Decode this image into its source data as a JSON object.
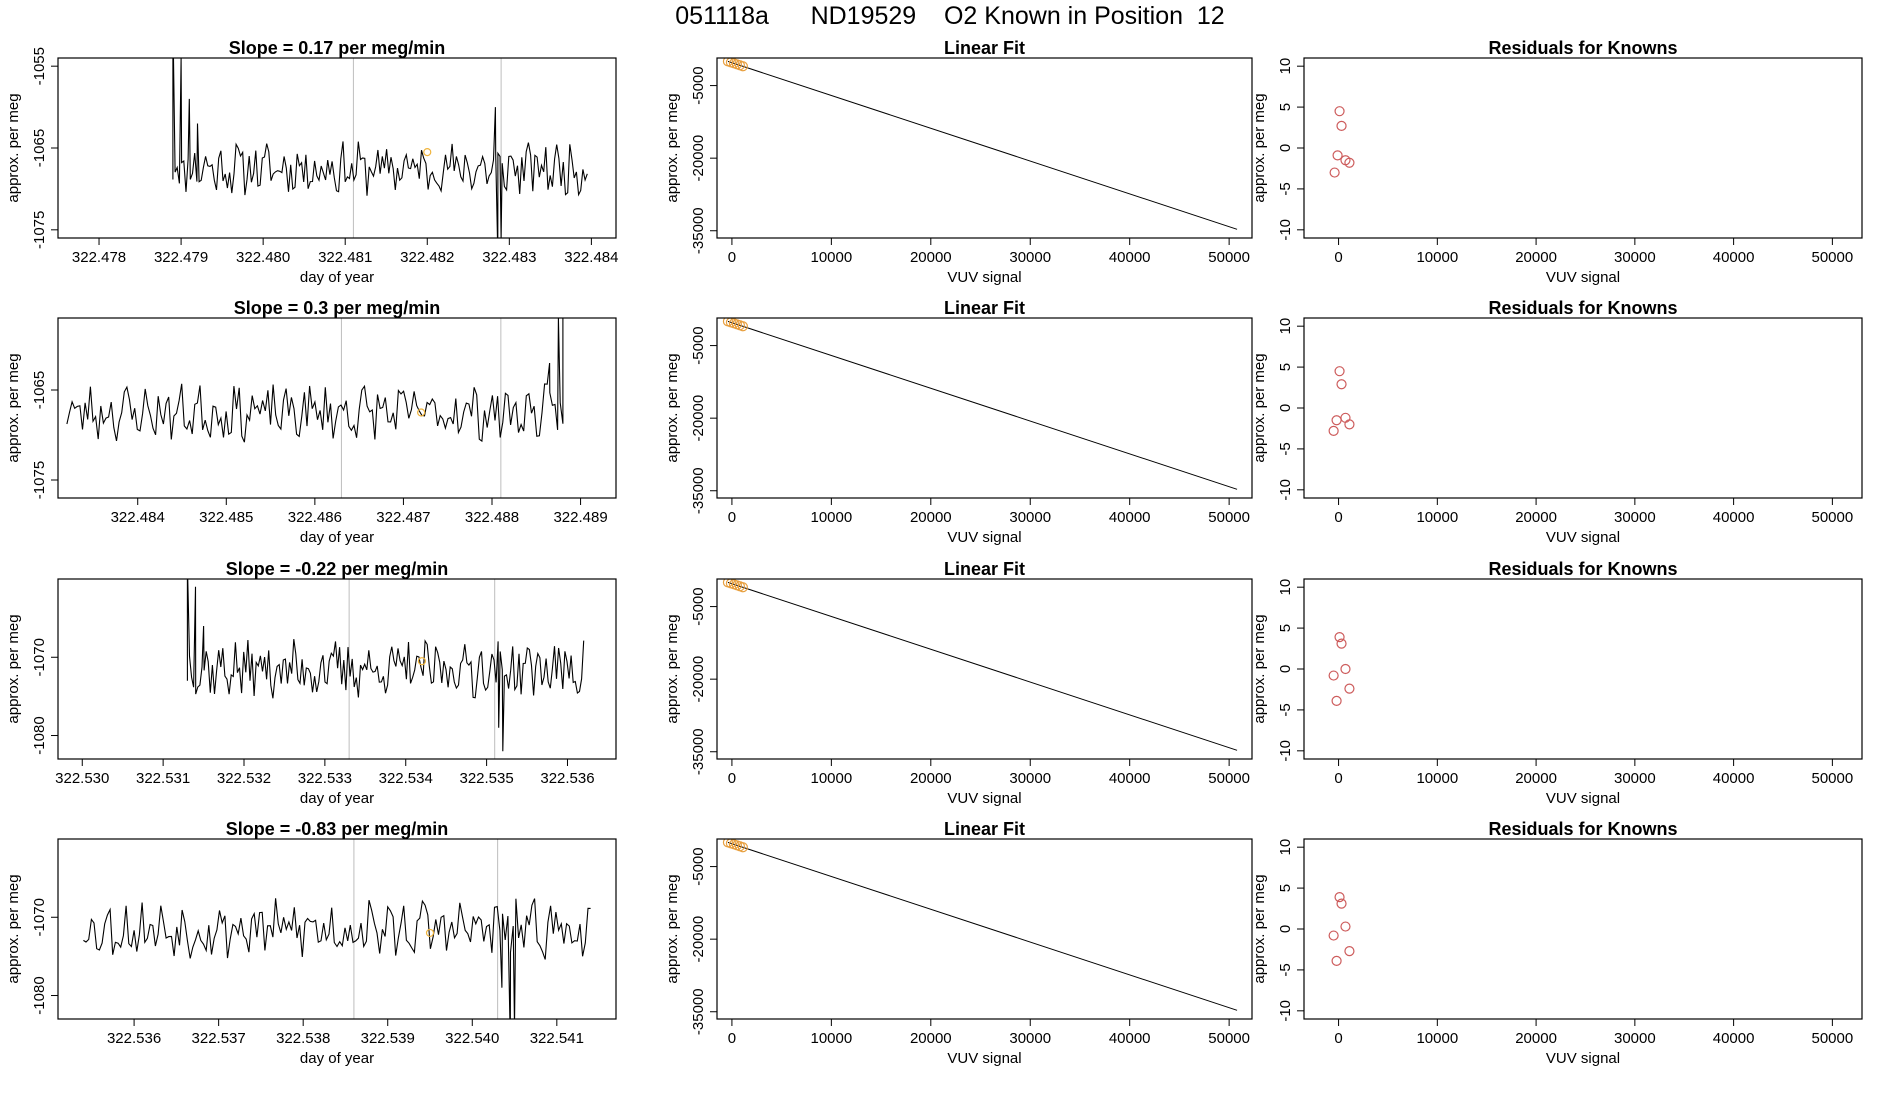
{
  "page_title": "051118a      ND19529    O2 Known in Position  12",
  "colors": {
    "trace": "#000000",
    "marker": "#f0b43c",
    "fit_point": "#e8a040",
    "residual": "#cd5c5c",
    "vline": "#bebebe"
  },
  "chart_data": [
    {
      "type": "line",
      "title": "Slope =  0.17  per meg/min",
      "xlabel": "day of year",
      "ylabel": "approx. per meg",
      "xlim": [
        322.4775,
        322.4843
      ],
      "ylim": [
        -1076,
        -1054
      ],
      "xticks": [
        "322.478",
        "322.479",
        "322.480",
        "322.481",
        "322.482",
        "322.483",
        "322.484"
      ],
      "yticks": [
        "-1055",
        "-1065",
        "-1075"
      ],
      "vlines": [
        322.4811,
        322.4829
      ],
      "marker": {
        "x": 322.482,
        "y": -1065.5
      },
      "x_start": 322.4789,
      "x_end": 322.48395,
      "seed": 11,
      "base": -1067.5,
      "amp": 2.6,
      "spikes": [
        {
          "x": 322.4789,
          "y": -1049
        },
        {
          "x": 322.479,
          "y": -1054
        },
        {
          "x": 322.4791,
          "y": -1059
        },
        {
          "x": 322.4792,
          "y": -1062
        },
        {
          "x": 322.48283,
          "y": -1060
        },
        {
          "x": 322.48286,
          "y": -1078
        },
        {
          "x": 322.4829,
          "y": -1076
        }
      ]
    },
    {
      "type": "line",
      "title": "Slope =  0.3  per meg/min",
      "xlabel": "day of year",
      "ylabel": "approx. per meg",
      "xlim": [
        322.4831,
        322.4894
      ],
      "ylim": [
        -1077,
        -1057
      ],
      "xticks": [
        "322.484",
        "322.485",
        "322.486",
        "322.487",
        "322.488",
        "322.489"
      ],
      "yticks": [
        "-1065",
        "-1075"
      ],
      "vlines": [
        322.4863,
        322.4881
      ],
      "marker": {
        "x": 322.4872,
        "y": -1067.5
      },
      "x_start": 322.4832,
      "x_end": 322.4888,
      "seed": 23,
      "base": -1067.5,
      "amp": 2.5,
      "spikes": [
        {
          "x": 322.48865,
          "y": -1062
        },
        {
          "x": 322.48875,
          "y": -1057
        },
        {
          "x": 322.4888,
          "y": -1053
        }
      ]
    },
    {
      "type": "line",
      "title": "Slope =  -0.22  per meg/min",
      "xlabel": "day of year",
      "ylabel": "approx. per meg",
      "xlim": [
        322.5297,
        322.5366
      ],
      "ylim": [
        -1083,
        -1060
      ],
      "xticks": [
        "322.530",
        "322.531",
        "322.532",
        "322.533",
        "322.534",
        "322.535",
        "322.536"
      ],
      "yticks": [
        "-1070",
        "-1080"
      ],
      "vlines": [
        322.5333,
        322.5351
      ],
      "marker": {
        "x": 322.5342,
        "y": -1070.5
      },
      "x_start": 322.5313,
      "x_end": 322.5362,
      "seed": 37,
      "base": -1071.5,
      "amp": 3,
      "spikes": [
        {
          "x": 322.5313,
          "y": -1058
        },
        {
          "x": 322.5314,
          "y": -1061
        },
        {
          "x": 322.5315,
          "y": -1066
        },
        {
          "x": 322.53515,
          "y": -1079
        },
        {
          "x": 322.5352,
          "y": -1082
        }
      ]
    },
    {
      "type": "line",
      "title": "Slope =  -0.83  per meg/min",
      "xlabel": "day of year",
      "ylabel": "approx. per meg",
      "xlim": [
        322.5351,
        322.5417
      ],
      "ylim": [
        -1083,
        -1060
      ],
      "xticks": [
        "322.536",
        "322.537",
        "322.538",
        "322.539",
        "322.540",
        "322.541"
      ],
      "yticks": [
        "-1070",
        "-1080"
      ],
      "vlines": [
        322.5386,
        322.5403
      ],
      "marker": {
        "x": 322.5395,
        "y": -1072
      },
      "x_start": 322.5354,
      "x_end": 322.5414,
      "seed": 53,
      "base": -1071.5,
      "amp": 3,
      "spikes": [
        {
          "x": 322.54035,
          "y": -1079
        },
        {
          "x": 322.54045,
          "y": -1086
        },
        {
          "x": 322.5405,
          "y": -1084
        }
      ]
    },
    {
      "type": "scatter",
      "title": "Linear Fit",
      "xlabel": "VUV signal",
      "ylabel": "approx. per meg",
      "xlim": [
        -1500,
        52300
      ],
      "ylim": [
        -36500,
        700
      ],
      "xticks": [
        0,
        10000,
        20000,
        30000,
        40000,
        50000
      ],
      "yticks": [
        -5000,
        -20000,
        -35000
      ],
      "line": {
        "x": [
          -400,
          50800
        ],
        "y": [
          0,
          -34700
        ]
      },
      "points": {
        "x": [
          -400,
          -100,
          200,
          500,
          800,
          1100
        ],
        "y": [
          0,
          -200,
          -400,
          -600,
          -800,
          -1000
        ]
      }
    },
    {
      "type": "scatter",
      "title": "Linear Fit",
      "xlabel": "VUV signal",
      "ylabel": "approx. per meg",
      "xlim": [
        -1500,
        52300
      ],
      "ylim": [
        -36500,
        700
      ],
      "xticks": [
        0,
        10000,
        20000,
        30000,
        40000,
        50000
      ],
      "yticks": [
        -5000,
        -20000,
        -35000
      ],
      "line": {
        "x": [
          -400,
          50800
        ],
        "y": [
          0,
          -34700
        ]
      },
      "points": {
        "x": [
          -400,
          -100,
          200,
          500,
          800,
          1100
        ],
        "y": [
          0,
          -200,
          -400,
          -600,
          -800,
          -1000
        ]
      }
    },
    {
      "type": "scatter",
      "title": "Linear Fit",
      "xlabel": "VUV signal",
      "ylabel": "approx. per meg",
      "xlim": [
        -1500,
        52300
      ],
      "ylim": [
        -36500,
        700
      ],
      "xticks": [
        0,
        10000,
        20000,
        30000,
        40000,
        50000
      ],
      "yticks": [
        -5000,
        -20000,
        -35000
      ],
      "line": {
        "x": [
          -400,
          50800
        ],
        "y": [
          0,
          -34700
        ]
      },
      "points": {
        "x": [
          -400,
          -100,
          200,
          500,
          800,
          1100
        ],
        "y": [
          0,
          -200,
          -400,
          -600,
          -800,
          -1000
        ]
      }
    },
    {
      "type": "scatter",
      "title": "Linear Fit",
      "xlabel": "VUV signal",
      "ylabel": "approx. per meg",
      "xlim": [
        -1500,
        52300
      ],
      "ylim": [
        -36500,
        700
      ],
      "xticks": [
        0,
        10000,
        20000,
        30000,
        40000,
        50000
      ],
      "yticks": [
        -5000,
        -20000,
        -35000
      ],
      "line": {
        "x": [
          -400,
          50800
        ],
        "y": [
          0,
          -34700
        ]
      },
      "points": {
        "x": [
          -400,
          -100,
          200,
          500,
          800,
          1100
        ],
        "y": [
          0,
          -200,
          -400,
          -600,
          -800,
          -1000
        ]
      }
    },
    {
      "type": "scatter",
      "title": "Residuals for Knowns",
      "xlabel": "VUV signal",
      "ylabel": "approx. per meg",
      "xlim": [
        -3500,
        53000
      ],
      "ylim": [
        -11,
        11
      ],
      "xticks": [
        0,
        10000,
        20000,
        30000,
        40000,
        50000
      ],
      "yticks": [
        10,
        5,
        0,
        -5,
        -10
      ],
      "points": {
        "x": [
          -400,
          -100,
          100,
          300,
          700,
          1100
        ],
        "y": [
          -3,
          -0.9,
          4.5,
          2.7,
          -1.5,
          -1.8
        ]
      }
    },
    {
      "type": "scatter",
      "title": "Residuals for Knowns",
      "xlabel": "VUV signal",
      "ylabel": "approx. per meg",
      "xlim": [
        -3500,
        53000
      ],
      "ylim": [
        -11,
        11
      ],
      "xticks": [
        0,
        10000,
        20000,
        30000,
        40000,
        50000
      ],
      "yticks": [
        10,
        5,
        0,
        -5,
        -10
      ],
      "points": {
        "x": [
          -500,
          -200,
          100,
          300,
          700,
          1100
        ],
        "y": [
          -2.8,
          -1.5,
          4.5,
          2.9,
          -1.2,
          -2.0
        ]
      }
    },
    {
      "type": "scatter",
      "title": "Residuals for Knowns",
      "xlabel": "VUV signal",
      "ylabel": "approx. per meg",
      "xlim": [
        -3500,
        53000
      ],
      "ylim": [
        -11,
        11
      ],
      "xticks": [
        0,
        10000,
        20000,
        30000,
        40000,
        50000
      ],
      "yticks": [
        10,
        5,
        0,
        -5,
        -10
      ],
      "points": {
        "x": [
          -500,
          -200,
          100,
          300,
          700,
          1100
        ],
        "y": [
          -0.8,
          -3.9,
          3.9,
          3.1,
          0,
          -2.4
        ]
      }
    },
    {
      "type": "scatter",
      "title": "Residuals for Knowns",
      "xlabel": "VUV signal",
      "ylabel": "approx. per meg",
      "xlim": [
        -3500,
        53000
      ],
      "ylim": [
        -11,
        11
      ],
      "xticks": [
        0,
        10000,
        20000,
        30000,
        40000,
        50000
      ],
      "yticks": [
        10,
        5,
        0,
        -5,
        -10
      ],
      "points": {
        "x": [
          -500,
          -200,
          100,
          300,
          700,
          1100
        ],
        "y": [
          -0.8,
          -3.9,
          3.9,
          3.1,
          0.3,
          -2.7
        ]
      }
    }
  ]
}
